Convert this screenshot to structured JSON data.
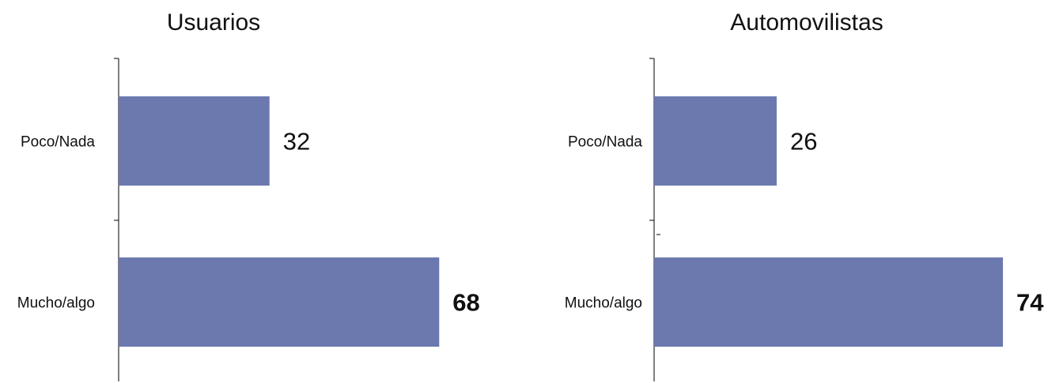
{
  "colors": {
    "bar": "#6b79ae",
    "axis": "#000000",
    "text": "#111111"
  },
  "chart_data": [
    {
      "type": "bar",
      "orientation": "horizontal",
      "title": "Usuarios",
      "categories": [
        "Poco/Nada",
        "Mucho/algo"
      ],
      "values": [
        32,
        68
      ],
      "value_labels": [
        "32",
        "68"
      ],
      "emphasized": [
        false,
        true
      ],
      "xlim": [
        0,
        100
      ],
      "grid": false,
      "legend": "none"
    },
    {
      "type": "bar",
      "orientation": "horizontal",
      "title": "Automovilistas",
      "categories": [
        "Poco/Nada",
        "Mucho/algo"
      ],
      "values": [
        26,
        74
      ],
      "value_labels": [
        "26",
        "74"
      ],
      "emphasized": [
        false,
        true
      ],
      "xlim": [
        0,
        100
      ],
      "grid": false,
      "legend": "none"
    }
  ]
}
